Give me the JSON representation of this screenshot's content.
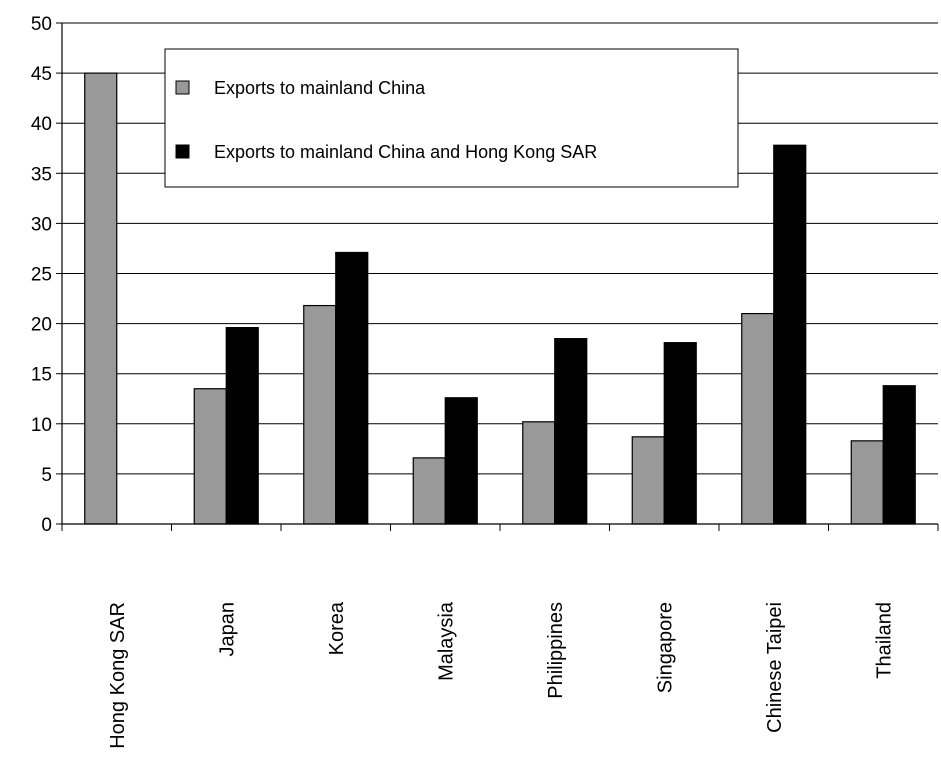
{
  "chart_data": {
    "type": "bar",
    "categories": [
      "Hong Kong SAR",
      "Japan",
      "Korea",
      "Malaysia",
      "Philippines",
      "Singapore",
      "Chinese Taipei",
      "Thailand"
    ],
    "series": [
      {
        "name": "Exports to mainland China",
        "color": "#999999",
        "values": [
          45,
          13.5,
          21.8,
          6.6,
          10.2,
          8.7,
          21.0,
          8.3
        ]
      },
      {
        "name": "Exports to mainland China and Hong Kong SAR",
        "color": "#000000",
        "values": [
          null,
          19.6,
          27.1,
          12.6,
          18.5,
          18.1,
          37.8,
          13.8
        ]
      }
    ],
    "ylim": [
      0,
      50
    ],
    "yticks": [
      0,
      5,
      10,
      15,
      20,
      25,
      30,
      35,
      40,
      45,
      50
    ],
    "grid": "horizontal",
    "legend_position": "top-center",
    "title": "",
    "xlabel": "",
    "ylabel": ""
  }
}
